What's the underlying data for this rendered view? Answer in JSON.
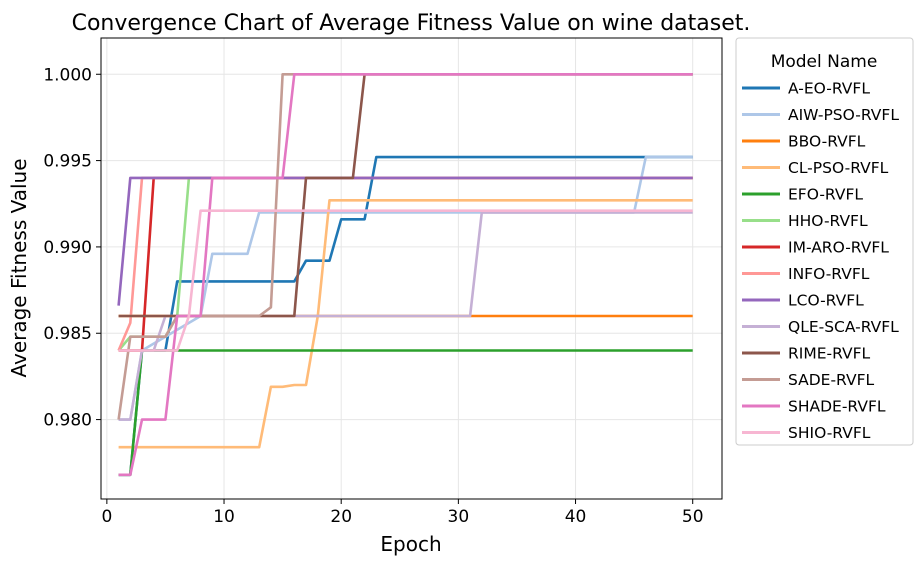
{
  "chart_data": {
    "type": "line",
    "title": "Convergence Chart of Average Fitness Value on wine dataset.",
    "xlabel": "Epoch",
    "ylabel": "Average Fitness Value",
    "xlim": [
      -0.5,
      52.5
    ],
    "ylim": [
      0.9754,
      1.0021
    ],
    "xticks": [
      0,
      10,
      20,
      30,
      40,
      50
    ],
    "xtick_labels": [
      "0",
      "10",
      "20",
      "30",
      "40",
      "50"
    ],
    "yticks": [
      0.98,
      0.985,
      0.99,
      0.995,
      1.0
    ],
    "ytick_labels": [
      "0.980",
      "0.985",
      "0.990",
      "0.995",
      "1.000"
    ],
    "grid": true,
    "legend": {
      "title": "Model Name",
      "placement": "outside-right"
    },
    "series": [
      {
        "name": "A-EO-RVFL",
        "color": "#1f77b4",
        "points": [
          [
            1,
            0.9768
          ],
          [
            2,
            0.9768
          ],
          [
            3,
            0.984
          ],
          [
            5,
            0.984
          ],
          [
            6,
            0.988
          ],
          [
            16,
            0.988
          ],
          [
            17,
            0.9892
          ],
          [
            19,
            0.9892
          ],
          [
            20,
            0.9916
          ],
          [
            22,
            0.9916
          ],
          [
            23,
            0.9952
          ],
          [
            50,
            0.9952
          ]
        ]
      },
      {
        "name": "AIW-PSO-RVFL",
        "color": "#aec7e8",
        "points": [
          [
            1,
            0.98
          ],
          [
            2,
            0.98
          ],
          [
            3,
            0.984
          ],
          [
            8,
            0.986
          ],
          [
            9,
            0.9896
          ],
          [
            12,
            0.9896
          ],
          [
            13,
            0.992
          ],
          [
            45,
            0.992
          ],
          [
            46,
            0.9952
          ],
          [
            50,
            0.9952
          ]
        ]
      },
      {
        "name": "BBO-RVFL",
        "color": "#ff7f0e",
        "points": [
          [
            1,
            0.986
          ],
          [
            50,
            0.986
          ]
        ]
      },
      {
        "name": "CL-PSO-RVFL",
        "color": "#ffbb78",
        "points": [
          [
            1,
            0.9784
          ],
          [
            13,
            0.9784
          ],
          [
            14,
            0.9819
          ],
          [
            15,
            0.9819
          ],
          [
            16,
            0.982
          ],
          [
            17,
            0.982
          ],
          [
            18,
            0.986
          ],
          [
            19,
            0.9927
          ],
          [
            50,
            0.9927
          ]
        ]
      },
      {
        "name": "EFO-RVFL",
        "color": "#2ca02c",
        "points": [
          [
            1,
            0.9768
          ],
          [
            2,
            0.9768
          ],
          [
            3,
            0.984
          ],
          [
            50,
            0.984
          ]
        ]
      },
      {
        "name": "HHO-RVFL",
        "color": "#98df8a",
        "points": [
          [
            1,
            0.984
          ],
          [
            2,
            0.9848
          ],
          [
            5,
            0.9848
          ],
          [
            6,
            0.986
          ],
          [
            7,
            0.994
          ],
          [
            50,
            0.994
          ]
        ]
      },
      {
        "name": "IM-ARO-RVFL",
        "color": "#d62728",
        "points": [
          [
            1,
            0.984
          ],
          [
            3,
            0.984
          ],
          [
            4,
            0.994
          ],
          [
            50,
            0.994
          ]
        ]
      },
      {
        "name": "INFO-RVFL",
        "color": "#ff9896",
        "points": [
          [
            1,
            0.984
          ],
          [
            2,
            0.9856
          ],
          [
            3,
            0.994
          ],
          [
            50,
            0.994
          ]
        ]
      },
      {
        "name": "LCO-RVFL",
        "color": "#9467bd",
        "points": [
          [
            1,
            0.9866
          ],
          [
            2,
            0.994
          ],
          [
            50,
            0.994
          ]
        ]
      },
      {
        "name": "QLE-SCA-RVFL",
        "color": "#c5b0d5",
        "points": [
          [
            1,
            0.98
          ],
          [
            2,
            0.98
          ],
          [
            3,
            0.984
          ],
          [
            4,
            0.984
          ],
          [
            5,
            0.986
          ],
          [
            31,
            0.986
          ],
          [
            32,
            0.992
          ],
          [
            50,
            0.992
          ]
        ]
      },
      {
        "name": "RIME-RVFL",
        "color": "#8c564b",
        "points": [
          [
            1,
            0.986
          ],
          [
            16,
            0.986
          ],
          [
            17,
            0.994
          ],
          [
            21,
            0.994
          ],
          [
            22,
            1.0
          ],
          [
            50,
            1.0
          ]
        ]
      },
      {
        "name": "SADE-RVFL",
        "color": "#c49c94",
        "points": [
          [
            1,
            0.98
          ],
          [
            2,
            0.9848
          ],
          [
            5,
            0.9848
          ],
          [
            6,
            0.986
          ],
          [
            13,
            0.986
          ],
          [
            14,
            0.9865
          ],
          [
            15,
            1.0
          ],
          [
            50,
            1.0
          ]
        ]
      },
      {
        "name": "SHADE-RVFL",
        "color": "#e377c2",
        "points": [
          [
            1,
            0.9768
          ],
          [
            2,
            0.9768
          ],
          [
            3,
            0.98
          ],
          [
            5,
            0.98
          ],
          [
            6,
            0.986
          ],
          [
            8,
            0.986
          ],
          [
            9,
            0.994
          ],
          [
            15,
            0.994
          ],
          [
            16,
            1.0
          ],
          [
            50,
            1.0
          ]
        ]
      },
      {
        "name": "SHIO-RVFL",
        "color": "#f7b6d2",
        "points": [
          [
            1,
            0.984
          ],
          [
            6,
            0.984
          ],
          [
            7,
            0.986
          ],
          [
            8,
            0.9921
          ],
          [
            50,
            0.9921
          ]
        ]
      }
    ]
  }
}
